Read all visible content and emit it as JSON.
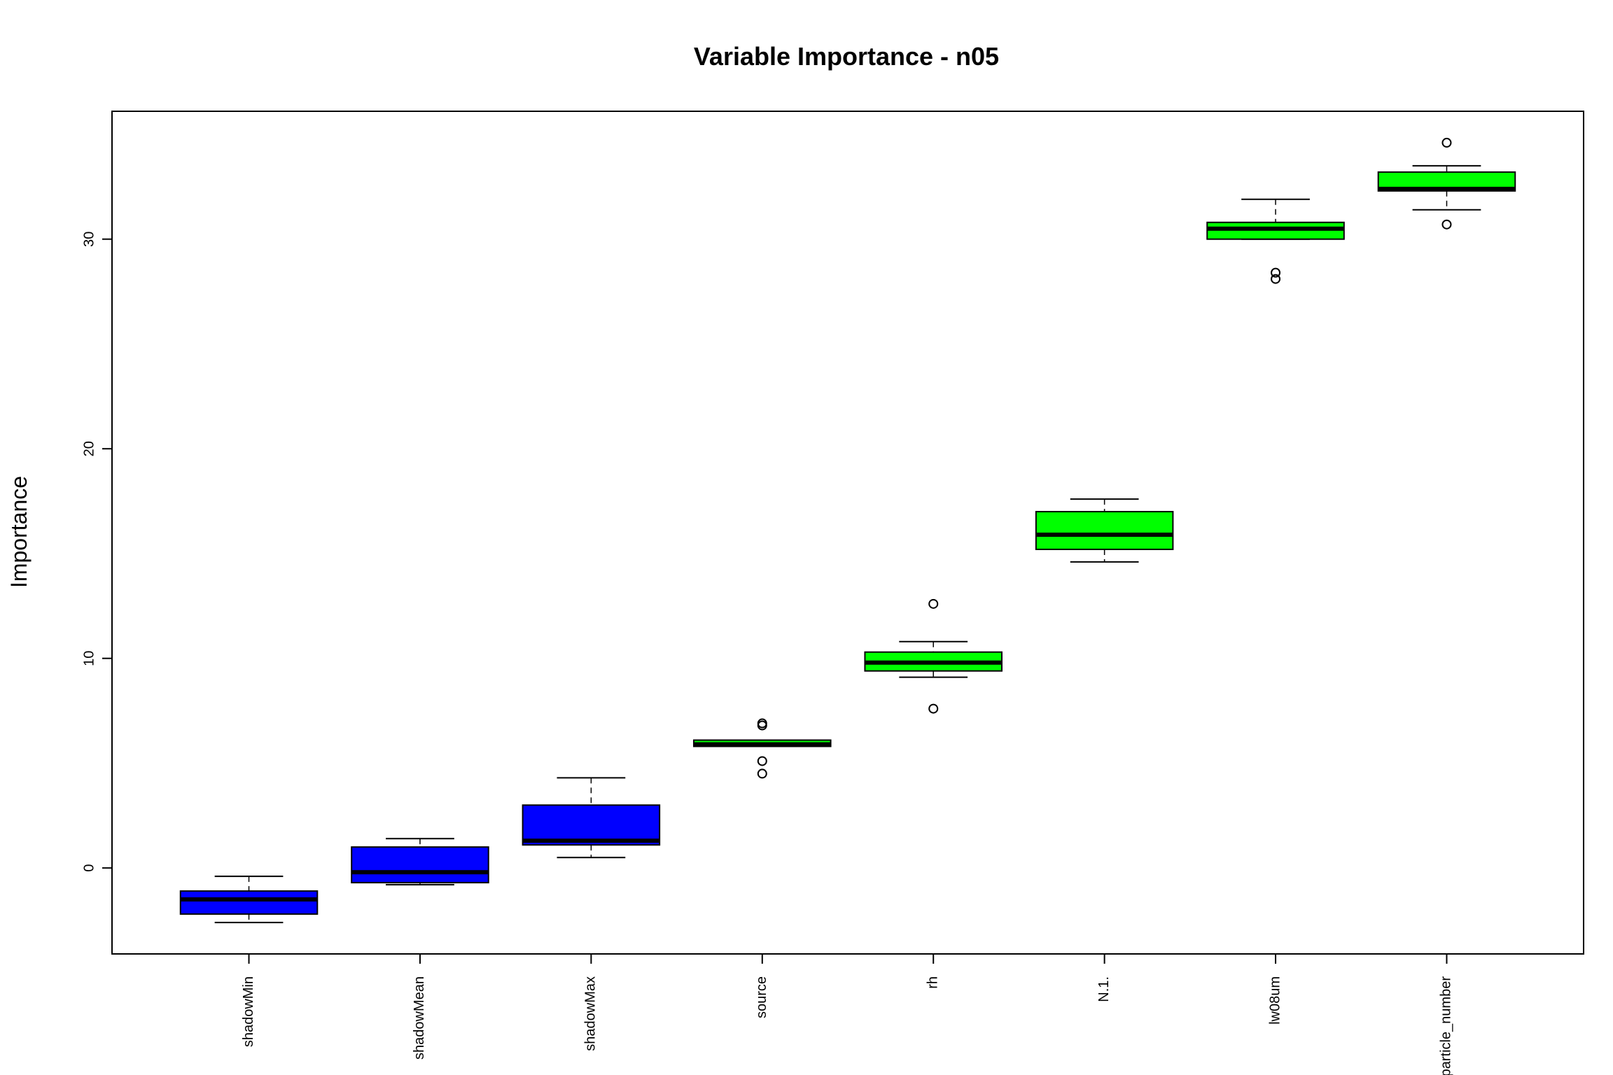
{
  "chart_data": {
    "type": "box",
    "title": "Variable Importance - n05",
    "xlabel": "",
    "ylabel": "Importance",
    "ylim": [
      -4.1,
      36.1
    ],
    "yticks": [
      0,
      10,
      20,
      30
    ],
    "grid": false,
    "legend": "none",
    "categories": [
      "shadowMin",
      "shadowMean",
      "shadowMax",
      "source",
      "rh",
      "N.1.",
      "lw08um",
      "particle_number"
    ],
    "boxes": [
      {
        "category": "shadowMin",
        "min": -2.6,
        "q1": -2.2,
        "median": -1.5,
        "q3": -1.1,
        "max": -0.4,
        "outliers": [],
        "color": "#0000ff"
      },
      {
        "category": "shadowMean",
        "min": -0.8,
        "q1": -0.7,
        "median": -0.2,
        "q3": 1.0,
        "max": 1.4,
        "outliers": [],
        "color": "#0000ff"
      },
      {
        "category": "shadowMax",
        "min": 0.5,
        "q1": 1.1,
        "median": 1.3,
        "q3": 3.0,
        "max": 4.3,
        "outliers": [],
        "color": "#0000ff"
      },
      {
        "category": "source",
        "min": 5.8,
        "q1": 5.8,
        "median": 5.9,
        "q3": 6.1,
        "max": 6.1,
        "outliers": [
          4.5,
          5.1,
          6.8,
          6.9
        ],
        "color": "#00ff00"
      },
      {
        "category": "rh",
        "min": 9.1,
        "q1": 9.4,
        "median": 9.8,
        "q3": 10.3,
        "max": 10.8,
        "outliers": [
          7.6,
          12.6
        ],
        "color": "#00ff00"
      },
      {
        "category": "N.1.",
        "min": 14.6,
        "q1": 15.2,
        "median": 15.9,
        "q3": 17.0,
        "max": 17.6,
        "outliers": [],
        "color": "#00ff00"
      },
      {
        "category": "lw08um",
        "min": 30.0,
        "q1": 30.0,
        "median": 30.5,
        "q3": 30.8,
        "max": 31.9,
        "outliers": [
          28.1,
          28.4
        ],
        "color": "#00ff00"
      },
      {
        "category": "particle_number",
        "min": 31.4,
        "q1": 32.3,
        "median": 32.4,
        "q3": 33.2,
        "max": 33.5,
        "outliers": [
          30.7,
          34.6
        ],
        "color": "#00ff00"
      }
    ]
  }
}
